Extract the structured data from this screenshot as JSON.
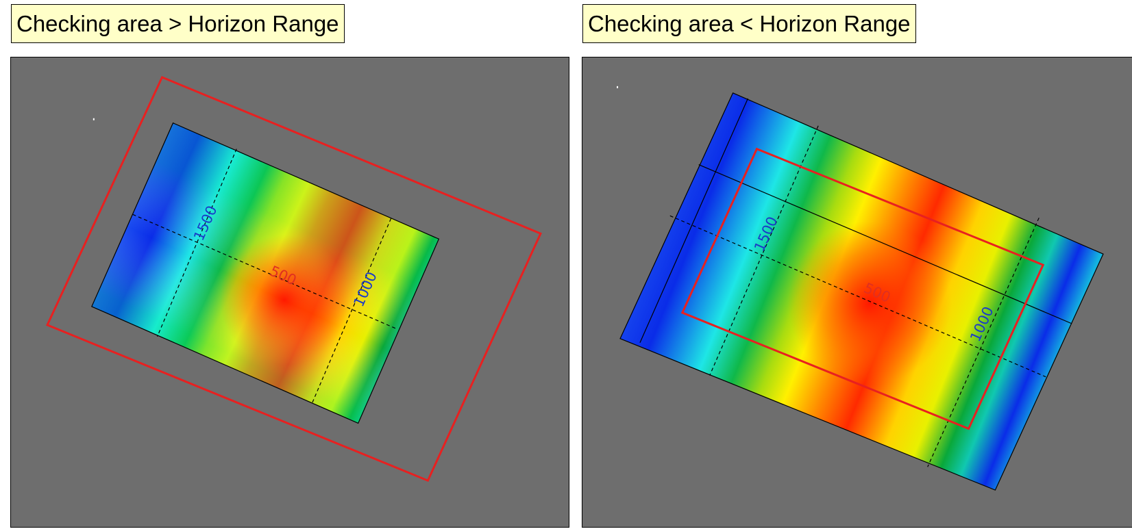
{
  "panels": [
    {
      "caption": "Checking area > Horizon Range",
      "labels": {
        "center": "500",
        "upper_left": "1500",
        "lower_right": "1000"
      }
    },
    {
      "caption": "Checking area < Horizon Range",
      "labels": {
        "center": "500",
        "upper_left": "1500",
        "lower_right": "1000"
      }
    }
  ],
  "colors": {
    "background": "#6e6e6e",
    "checking_area": "#e82020",
    "caption_fill": "#ffffc8",
    "label_high": "#e03020",
    "label_low": "#1a3cc8"
  }
}
